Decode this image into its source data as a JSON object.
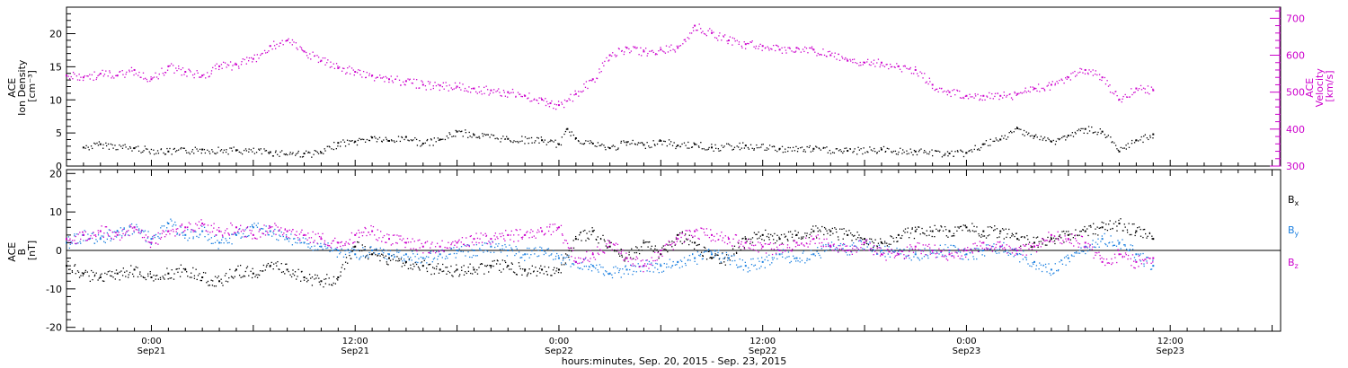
{
  "figure": {
    "xlabel": "hours:minutes, Sep. 20, 2015 - Sep. 23, 2015",
    "x_ticks": [
      {
        "time": "0:00",
        "date": "Sep21",
        "hours": 21
      },
      {
        "time": "12:00",
        "date": "Sep21",
        "hours": 33
      },
      {
        "time": "0:00",
        "date": "Sep22",
        "hours": 45
      },
      {
        "time": "12:00",
        "date": "Sep22",
        "hours": 57
      },
      {
        "time": "0:00",
        "date": "Sep23",
        "hours": 69
      },
      {
        "time": "12:00",
        "date": "Sep23",
        "hours": 81
      }
    ]
  },
  "colors": {
    "black": "#000000",
    "magenta": "#cc00cc",
    "blue": "#1a7fe0"
  },
  "chart_data": [
    {
      "type": "scatter",
      "panel": "top",
      "left_axis": {
        "label_lines": [
          "ACE",
          "Ion Density",
          "[cm⁻³]"
        ],
        "ylim": [
          0,
          24
        ],
        "ticks": [
          0,
          5,
          10,
          15,
          20
        ]
      },
      "right_axis": {
        "label_lines": [
          "ACE",
          "Velocity",
          "[km/s]"
        ],
        "ylim": [
          300,
          730
        ],
        "ticks": [
          300,
          400,
          500,
          600,
          700
        ],
        "color": "#cc00cc"
      },
      "xlim_hours_from_sep20": [
        16,
        87.5
      ],
      "series": [
        {
          "color": "black",
          "axis": "left",
          "x": [
            17,
            18,
            20,
            22,
            24,
            26,
            28,
            30,
            31,
            32,
            33,
            34,
            35,
            36,
            37,
            38,
            39,
            40,
            42,
            44,
            45,
            45.5,
            46,
            47,
            48,
            49,
            50,
            51,
            52,
            53,
            54,
            56,
            58,
            60,
            62,
            64,
            66,
            68,
            69,
            70,
            71,
            72,
            73,
            74,
            75,
            76,
            77,
            78,
            79,
            80
          ],
          "y": [
            2.8,
            3.3,
            2.7,
            2.2,
            2.5,
            2.4,
            2.1,
            1.9,
            2.0,
            3.5,
            3.7,
            4.3,
            3.8,
            4.4,
            3.4,
            4.0,
            5.2,
            4.7,
            4.1,
            3.9,
            3.3,
            5.6,
            4.2,
            3.4,
            2.7,
            3.6,
            3.2,
            3.8,
            3.1,
            3.3,
            2.8,
            3.1,
            2.6,
            2.6,
            2.3,
            2.5,
            2.2,
            1.9,
            2.0,
            3.3,
            4.0,
            5.7,
            4.5,
            3.7,
            4.6,
            5.6,
            5.2,
            2.2,
            3.9,
            4.8
          ]
        },
        {
          "color": "magenta",
          "axis": "right",
          "x": [
            16,
            17,
            18,
            19,
            20,
            21,
            22,
            23,
            24,
            25,
            26,
            27,
            28,
            29,
            30,
            31,
            32,
            33,
            34,
            35,
            36,
            37,
            38,
            39,
            40,
            41,
            42,
            43,
            44,
            44.5,
            45,
            46,
            47,
            48,
            49,
            50,
            51,
            52,
            53,
            54,
            55,
            56,
            57,
            58,
            59,
            60,
            61,
            62,
            63,
            64,
            65,
            66,
            67,
            68,
            69,
            70,
            71,
            72,
            73,
            74,
            75,
            76,
            77,
            78,
            79,
            80
          ],
          "y": [
            545,
            540,
            550,
            545,
            560,
            535,
            570,
            555,
            545,
            570,
            575,
            590,
            625,
            640,
            610,
            585,
            565,
            555,
            545,
            535,
            530,
            520,
            518,
            515,
            510,
            505,
            500,
            490,
            480,
            470,
            465,
            495,
            535,
            600,
            620,
            610,
            615,
            620,
            680,
            660,
            640,
            630,
            625,
            615,
            620,
            615,
            600,
            585,
            580,
            580,
            570,
            560,
            520,
            500,
            490,
            490,
            490,
            495,
            510,
            520,
            540,
            560,
            540,
            480,
            510,
            505
          ]
        }
      ]
    },
    {
      "type": "scatter",
      "panel": "bottom",
      "left_axis": {
        "label_lines": [
          "ACE",
          "B",
          "[nT]"
        ],
        "ylim": [
          -21,
          21
        ],
        "ticks": [
          -20,
          -10,
          0,
          10,
          20
        ]
      },
      "xlim_hours_from_sep20": [
        16,
        87.5
      ],
      "legend": [
        {
          "name": "Bx",
          "base": "B",
          "sub": "x",
          "color": "black"
        },
        {
          "name": "By",
          "base": "B",
          "sub": "y",
          "color": "blue"
        },
        {
          "name": "Bz",
          "base": "B",
          "sub": "z",
          "color": "magenta"
        }
      ],
      "series": [
        {
          "name": "Bx",
          "color": "black",
          "x": [
            16,
            17,
            18,
            19,
            20,
            21,
            22,
            23,
            24,
            25,
            26,
            27,
            28,
            29,
            30,
            31,
            32,
            33,
            34,
            35,
            36,
            37,
            38,
            39,
            40,
            41,
            42,
            43,
            44,
            45,
            46,
            47,
            48,
            49,
            50,
            51,
            52,
            53,
            54,
            55,
            56,
            57,
            58,
            59,
            60,
            61,
            62,
            63,
            64,
            65,
            66,
            67,
            68,
            69,
            70,
            71,
            72,
            73,
            74,
            75,
            76,
            77,
            78,
            79,
            80
          ],
          "y": [
            -4,
            -6,
            -7,
            -6,
            -5,
            -7,
            -6,
            -5,
            -7,
            -8,
            -5,
            -6,
            -4,
            -5,
            -7,
            -8,
            -7,
            1,
            -1,
            -2,
            -3,
            -4,
            -5,
            -5,
            -5,
            -4,
            -4,
            -5,
            -5,
            -5,
            3,
            5,
            1,
            -2,
            2,
            -1,
            4,
            2,
            -2,
            -2,
            3,
            4,
            3,
            4,
            5,
            5,
            4,
            3,
            2,
            4,
            5,
            5,
            5,
            6,
            5,
            5,
            3,
            2,
            3,
            4,
            5,
            6,
            7,
            5,
            3
          ]
        },
        {
          "name": "By",
          "color": "blue",
          "x": [
            16,
            17,
            18,
            19,
            20,
            21,
            22,
            23,
            24,
            25,
            26,
            27,
            28,
            29,
            30,
            31,
            32,
            33,
            34,
            35,
            36,
            37,
            38,
            39,
            40,
            41,
            42,
            43,
            44,
            45,
            46,
            47,
            48,
            49,
            50,
            51,
            52,
            53,
            54,
            55,
            56,
            57,
            58,
            59,
            60,
            61,
            62,
            63,
            64,
            65,
            66,
            67,
            68,
            69,
            70,
            71,
            72,
            73,
            74,
            75,
            76,
            77,
            78,
            79,
            80
          ],
          "y": [
            2,
            4,
            3,
            5,
            6,
            3,
            7,
            4,
            5,
            2,
            4,
            6,
            5,
            3,
            2,
            1,
            0,
            -1,
            0,
            -1,
            -1,
            -2,
            -1,
            0,
            0,
            1,
            0,
            -1,
            0,
            -2,
            -3,
            -4,
            -6,
            -5,
            -4,
            -4,
            -3,
            -2,
            -1,
            -2,
            -4,
            -3,
            -1,
            -2,
            -1,
            1,
            0,
            2,
            0,
            -1,
            -1,
            0,
            0,
            -1,
            0,
            1,
            -1,
            -3,
            -5,
            -2,
            1,
            3,
            2,
            -1,
            -4
          ]
        },
        {
          "name": "Bz",
          "color": "magenta",
          "x": [
            16,
            17,
            18,
            19,
            20,
            21,
            22,
            23,
            24,
            25,
            26,
            27,
            28,
            29,
            30,
            31,
            32,
            33,
            34,
            35,
            36,
            37,
            38,
            39,
            40,
            41,
            42,
            43,
            44,
            45,
            46,
            47,
            48,
            49,
            50,
            51,
            52,
            53,
            54,
            55,
            56,
            57,
            58,
            59,
            60,
            61,
            62,
            63,
            64,
            65,
            66,
            67,
            68,
            69,
            70,
            71,
            72,
            73,
            74,
            75,
            76,
            77,
            78,
            79,
            80
          ],
          "y": [
            3,
            4,
            5,
            4,
            6,
            2,
            5,
            6,
            7,
            5,
            6,
            4,
            6,
            5,
            4,
            3,
            2,
            4,
            5,
            3,
            2,
            1,
            1,
            2,
            3,
            3,
            4,
            4,
            5,
            6,
            -3,
            -1,
            2,
            -2,
            -4,
            0,
            3,
            5,
            4,
            3,
            2,
            1,
            0,
            2,
            3,
            1,
            0,
            2,
            -1,
            -1,
            1,
            0,
            -1,
            0,
            2,
            1,
            0,
            1,
            4,
            3,
            2,
            -3,
            -1,
            -3,
            -2
          ]
        }
      ]
    }
  ]
}
